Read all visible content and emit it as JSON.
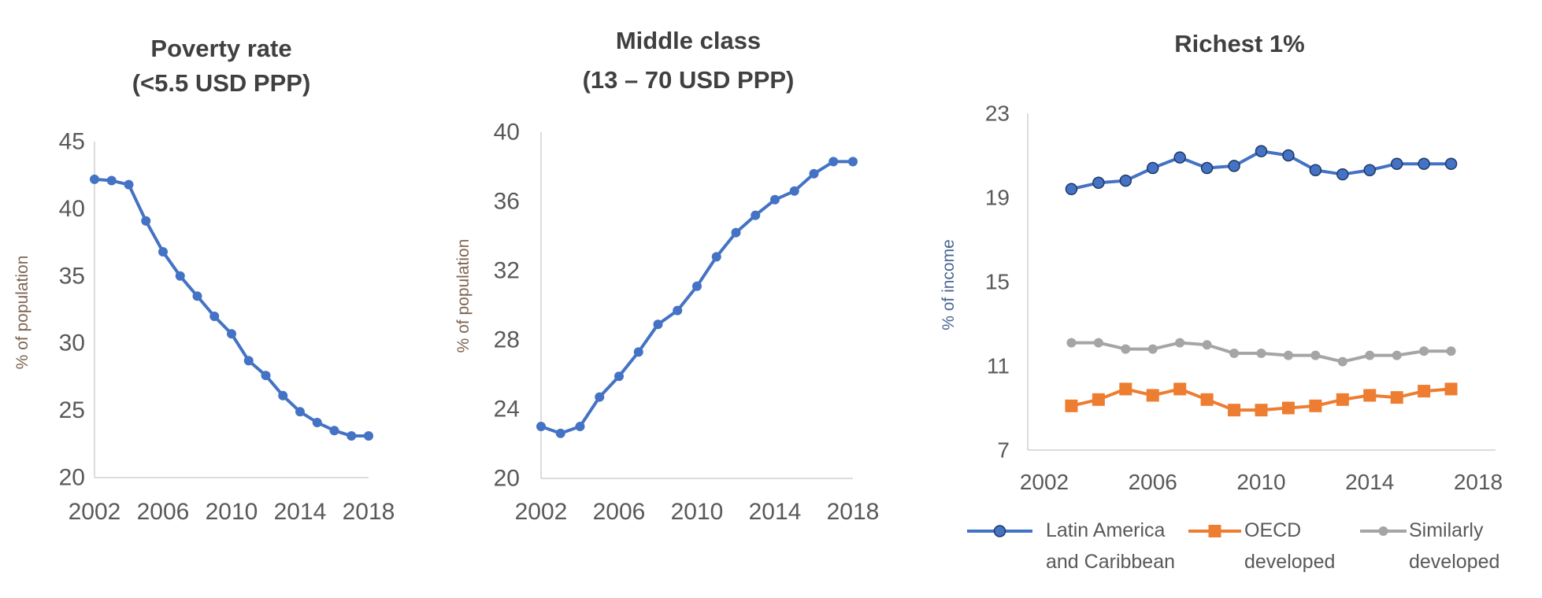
{
  "chart_data": [
    {
      "type": "line",
      "title": "Poverty rate",
      "subtitle": "(<5.5 USD PPP)",
      "xlabel": "",
      "ylabel": "% of population",
      "ylim": [
        20,
        45
      ],
      "yticks": [
        20,
        25,
        30,
        35,
        40,
        45
      ],
      "xlim": [
        2002,
        2018
      ],
      "xticks": [
        2002,
        2006,
        2010,
        2014,
        2018
      ],
      "grid": false,
      "x": [
        2002,
        2003,
        2004,
        2005,
        2006,
        2007,
        2008,
        2009,
        2010,
        2011,
        2012,
        2013,
        2014,
        2015,
        2016,
        2017,
        2018
      ],
      "series": [
        {
          "color": "#4472C4",
          "marker": "circle",
          "values": [
            42.2,
            42.1,
            41.8,
            39.1,
            36.8,
            35.0,
            33.5,
            32.0,
            30.7,
            28.7,
            27.6,
            26.1,
            24.9,
            24.1,
            23.5,
            23.1,
            23.1
          ]
        }
      ]
    },
    {
      "type": "line",
      "title": "Middle class",
      "subtitle": "(13 – 70 USD PPP)",
      "xlabel": "",
      "ylabel": "% of population",
      "ylim": [
        20,
        40
      ],
      "yticks": [
        20,
        24,
        28,
        32,
        36,
        40
      ],
      "xlim": [
        2002,
        2018
      ],
      "xticks": [
        2002,
        2006,
        2010,
        2014,
        2018
      ],
      "grid": false,
      "x": [
        2002,
        2003,
        2004,
        2005,
        2006,
        2007,
        2008,
        2009,
        2010,
        2011,
        2012,
        2013,
        2014,
        2015,
        2016,
        2017,
        2018
      ],
      "series": [
        {
          "color": "#4472C4",
          "marker": "circle",
          "values": [
            23.0,
            22.6,
            23.0,
            24.7,
            25.9,
            27.3,
            28.9,
            29.7,
            31.1,
            32.8,
            34.2,
            35.2,
            36.1,
            36.6,
            37.6,
            38.3,
            38.3
          ]
        }
      ]
    },
    {
      "type": "line",
      "title": "Richest 1%",
      "xlabel": "",
      "ylabel": "% of income",
      "ylim": [
        7,
        23
      ],
      "yticks": [
        7,
        11,
        15,
        19,
        23
      ],
      "xlim": [
        2002,
        2018
      ],
      "xticks": [
        2002,
        2006,
        2010,
        2014,
        2018
      ],
      "grid": false,
      "legend": "bottom",
      "x": [
        2003,
        2004,
        2005,
        2006,
        2007,
        2008,
        2009,
        2010,
        2011,
        2012,
        2013,
        2014,
        2015,
        2016,
        2017
      ],
      "series": [
        {
          "name": "Latin America and Caribbean",
          "name_lines": [
            "Latin America",
            "and Caribbean"
          ],
          "color": "#4472C4",
          "marker": "circle-outlined",
          "values": [
            19.4,
            19.7,
            19.8,
            20.4,
            20.9,
            20.4,
            20.5,
            21.2,
            21.0,
            20.3,
            20.1,
            20.3,
            20.6,
            20.6,
            20.6
          ]
        },
        {
          "name": "OECD developed",
          "name_lines": [
            "OECD",
            "developed"
          ],
          "color": "#ED7D31",
          "marker": "square",
          "values": [
            9.1,
            9.4,
            9.9,
            9.6,
            9.9,
            9.4,
            8.9,
            8.9,
            9.0,
            9.1,
            9.4,
            9.6,
            9.5,
            9.8,
            9.9
          ]
        },
        {
          "name": "Similarly developed",
          "name_lines": [
            "Similarly",
            "developed"
          ],
          "color": "#A5A5A5",
          "marker": "circle",
          "values": [
            12.1,
            12.1,
            11.8,
            11.8,
            12.1,
            12.0,
            11.6,
            11.6,
            11.5,
            11.5,
            11.2,
            11.5,
            11.5,
            11.7,
            11.7
          ]
        }
      ]
    }
  ]
}
